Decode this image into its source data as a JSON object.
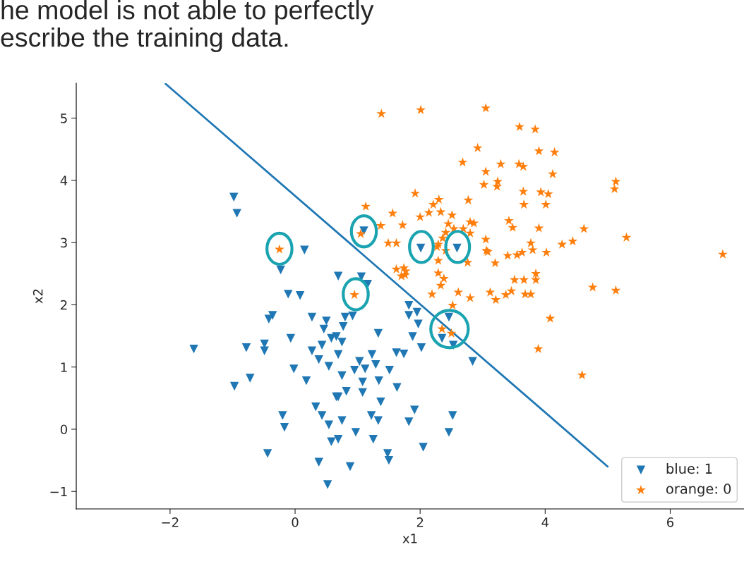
{
  "chart_data": {
    "type": "scatter",
    "annotations": [
      "he model is not able to perfectly\nescribe the training data."
    ],
    "xlabel": "x1",
    "ylabel": "x2",
    "xlim": [
      -3.5,
      7.18
    ],
    "ylim": [
      -1.28,
      5.56
    ],
    "xticks": [
      -2,
      0,
      2,
      4,
      6
    ],
    "yticks": [
      -1,
      0,
      1,
      2,
      3,
      4,
      5
    ],
    "grid": false,
    "legend": "bottom right",
    "series": [
      {
        "name": "blue: 1",
        "color": "#1f77b4",
        "marker": "triangle",
        "x": [
          -0.98,
          -0.93,
          0.15,
          -0.23,
          -0.11,
          0.08,
          -0.36,
          -0.42,
          0.27,
          -0.07,
          -1.62,
          -0.78,
          -0.49,
          -0.49,
          -0.97,
          -0.72,
          -0.02,
          0.18,
          -0.2,
          -0.17,
          -0.44,
          0.38,
          0.52,
          0.69,
          1.06,
          1.16,
          0.5,
          0.46,
          0.58,
          0.43,
          0.27,
          0.38,
          0.54,
          0.66,
          0.33,
          0.43,
          0.54,
          0.58,
          0.8,
          0.92,
          0.77,
          0.66,
          0.75,
          0.69,
          1.33,
          1.82,
          1.95,
          1.82,
          1.97,
          1.88,
          2.02,
          1.62,
          1.74,
          2.46,
          2.35,
          2.53,
          2.84,
          1.03,
          1.23,
          1.29,
          0.95,
          1.12,
          1.51,
          0.75,
          1.08,
          1.34,
          1.63,
          0.82,
          1.08,
          0.69,
          1.37,
          1.91,
          1.82,
          2.52,
          2.46,
          1.22,
          1.33,
          0.75,
          0.97,
          1.25,
          0.69,
          1.48,
          1.5,
          2.05,
          0.88,
          2.01,
          2.59,
          1.1
        ],
        "values": [
          3.73,
          3.47,
          2.88,
          2.56,
          2.17,
          2.15,
          1.83,
          1.77,
          1.8,
          1.46,
          1.29,
          1.31,
          1.37,
          1.26,
          0.69,
          0.82,
          0.97,
          0.78,
          0.22,
          0.03,
          -0.39,
          -0.53,
          -0.89,
          2.46,
          2.45,
          2.33,
          1.74,
          1.61,
          1.46,
          1.35,
          1.26,
          1.12,
          1.01,
          0.52,
          0.36,
          0.22,
          0.07,
          -0.2,
          1.8,
          1.82,
          1.65,
          1.49,
          1.4,
          1.2,
          1.54,
          1.99,
          1.88,
          1.83,
          1.69,
          1.49,
          1.31,
          1.23,
          1.21,
          1.8,
          1.46,
          1.35,
          1.09,
          1.09,
          1.2,
          1.04,
          0.95,
          0.97,
          0.95,
          0.86,
          0.76,
          0.78,
          0.67,
          0.61,
          0.59,
          0.52,
          0.44,
          0.31,
          0.12,
          0.22,
          -0.05,
          0.22,
          0.14,
          0.14,
          -0.05,
          -0.16,
          -0.16,
          -0.39,
          -0.5,
          -0.29,
          -0.6,
          2.91,
          2.91,
          3.19
        ]
      },
      {
        "name": "orange: 0",
        "color": "#ff7f0e",
        "marker": "star",
        "x": [
          1.38,
          2.01,
          3.05,
          3.59,
          3.84,
          2.92,
          3.9,
          4.15,
          2.68,
          3.29,
          3.58,
          3.65,
          4.12,
          3.05,
          3.24,
          3.23,
          3.02,
          2.77,
          3.65,
          3.93,
          4.05,
          4.01,
          3.66,
          5.13,
          5.11,
          1.92,
          2.3,
          2.21,
          1.13,
          1.56,
          2.14,
          2.0,
          2.33,
          2.51,
          2.45,
          2.8,
          1.37,
          1.72,
          1.49,
          1.62,
          1.62,
          1.77,
          1.7,
          2.27,
          2.36,
          2.41,
          2.54,
          2.8,
          3.05,
          3.06,
          3.2,
          3.42,
          3.48,
          3.9,
          4.44,
          4.27,
          4.62,
          5.3,
          6.84,
          3.08,
          3.4,
          3.55,
          3.63,
          3.77,
          3.8,
          4.02,
          3.51,
          3.66,
          3.85,
          3.85,
          3.12,
          3.21,
          3.37,
          3.46,
          3.68,
          3.77,
          4.76,
          5.13,
          4.08,
          3.89,
          4.59,
          2.29,
          1.74,
          1.76,
          2.29,
          2.38,
          2.33,
          2.19,
          2.61,
          2.8,
          2.52,
          2.35,
          2.5,
          2.29,
          2.76,
          2.41,
          2.69,
          2.86,
          -0.25,
          0.95,
          1.05
        ],
        "values": [
          5.07,
          5.13,
          5.16,
          4.86,
          4.82,
          4.52,
          4.47,
          4.45,
          4.29,
          4.26,
          4.26,
          4.22,
          4.1,
          4.14,
          3.98,
          3.9,
          3.93,
          3.68,
          3.82,
          3.81,
          3.78,
          3.61,
          3.61,
          3.98,
          3.86,
          3.79,
          3.69,
          3.61,
          3.58,
          3.47,
          3.48,
          3.41,
          3.49,
          3.44,
          3.3,
          3.33,
          3.27,
          3.28,
          2.99,
          2.99,
          2.57,
          2.54,
          2.46,
          2.93,
          3.07,
          2.87,
          3.22,
          3.15,
          3.05,
          2.87,
          2.67,
          3.35,
          3.24,
          3.23,
          3.02,
          2.97,
          3.22,
          3.08,
          2.81,
          2.85,
          2.79,
          2.8,
          2.84,
          2.99,
          2.88,
          2.84,
          2.4,
          2.4,
          2.5,
          2.4,
          2.2,
          2.08,
          2.16,
          2.22,
          2.17,
          2.17,
          2.28,
          2.23,
          1.78,
          1.29,
          0.87,
          2.71,
          2.59,
          2.48,
          2.51,
          2.42,
          2.31,
          2.17,
          2.2,
          2.11,
          1.99,
          1.61,
          1.54,
          2.97,
          2.68,
          3.16,
          3.22,
          3.31,
          2.89,
          2.16,
          3.14
        ]
      },
      {
        "type": "line",
        "color": "#1f77b4",
        "x": [
          -2.07,
          5.0
        ],
        "values": [
          5.55,
          -0.6
        ]
      }
    ]
  }
}
